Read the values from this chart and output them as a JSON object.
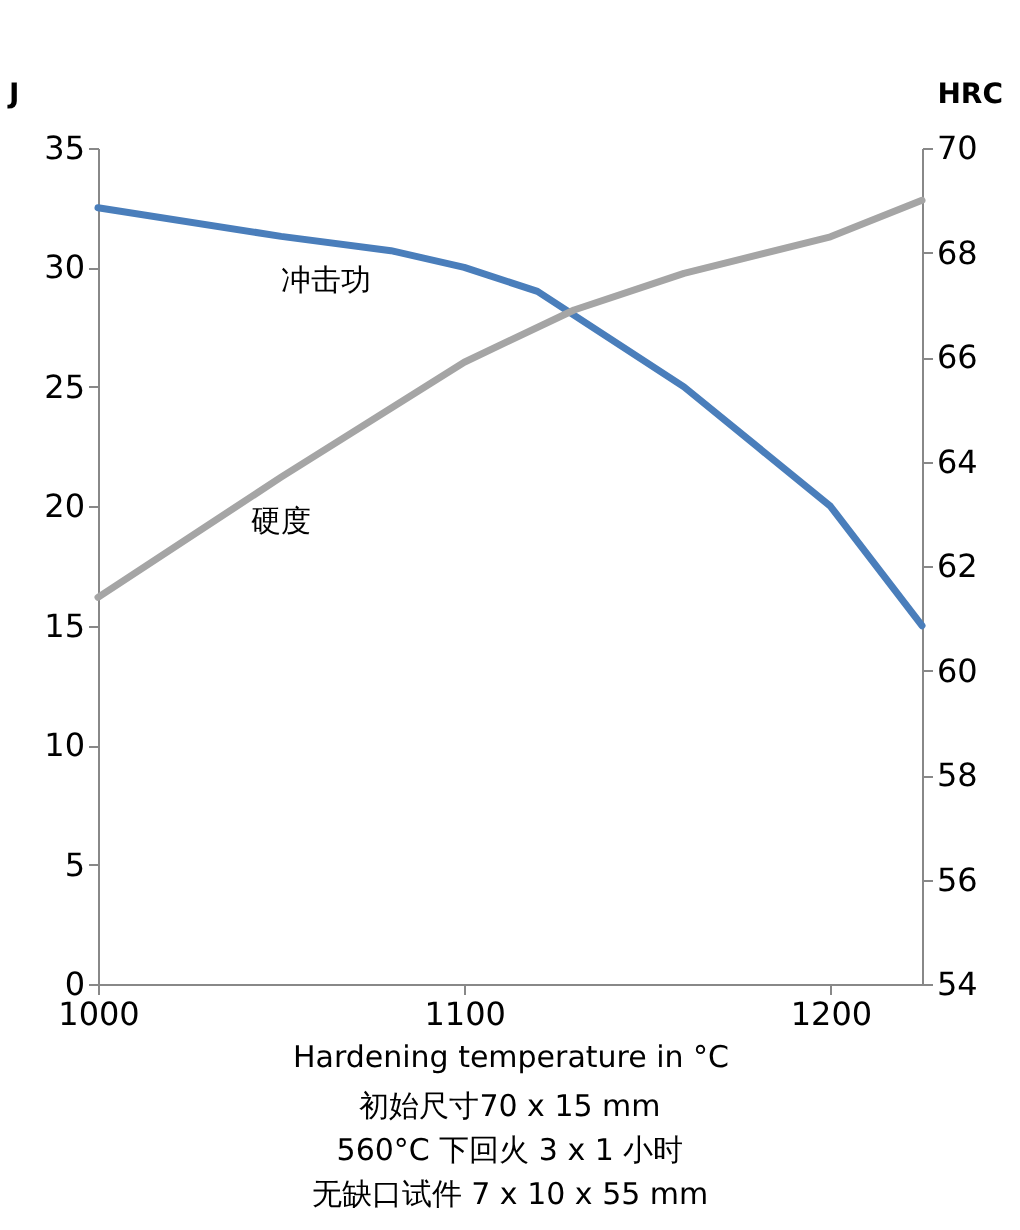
{
  "chart_data": {
    "type": "line",
    "xlabel": "Hardening temperature in °C",
    "ylabel": "J",
    "y2label": "HRC",
    "x": [
      1000,
      1050,
      1080,
      1100,
      1120,
      1140,
      1160,
      1180,
      1200,
      1225
    ],
    "series": [
      {
        "name": "冲击功",
        "color": "#4a7ebb",
        "values": [
          32.5,
          31.3,
          30.7,
          30,
          29,
          27,
          25,
          22.5,
          20,
          15
        ]
      },
      {
        "name": "硬度",
        "color": "#a5a5a5",
        "axis": "y2",
        "x": [
          1000,
          1050,
          1100,
          1130,
          1160,
          1200,
          1225
        ],
        "values": [
          61.4,
          63.7,
          65.9,
          66.9,
          67.6,
          68.3,
          69
        ]
      }
    ],
    "xlim": [
      1000,
      1225
    ],
    "xticks": [
      1000,
      1100,
      1200
    ],
    "ylim": [
      0,
      35
    ],
    "yticks": [
      0,
      5,
      10,
      15,
      20,
      25,
      30,
      35
    ],
    "y2lim": [
      54,
      70
    ],
    "y2ticks": [
      54,
      56,
      58,
      60,
      62,
      64,
      66,
      68,
      70
    ],
    "grid": false,
    "legend": false,
    "marker": "none",
    "line_style": "solid",
    "annotations": [
      "初始尺寸70 x 15 mm",
      "560°C 下回火 3 x 1 小时",
      "无缺口试件 7 x 10 x 55 mm"
    ]
  }
}
